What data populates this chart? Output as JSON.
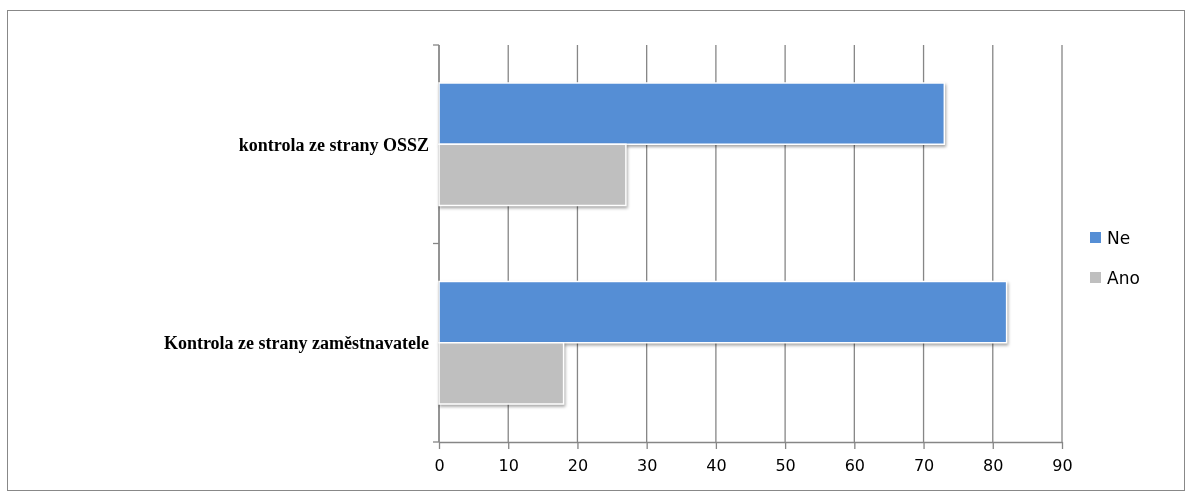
{
  "chart_data": {
    "type": "bar",
    "orientation": "horizontal",
    "categories": [
      "kontrola ze strany OSSZ",
      "Kontrola ze strany zaměstnavatele"
    ],
    "series": [
      {
        "name": "Ne",
        "color": "#558ed5",
        "values": [
          73,
          82
        ]
      },
      {
        "name": "Ano",
        "color": "#bfbfbf",
        "values": [
          27,
          18
        ]
      }
    ],
    "xlim": [
      0,
      90
    ],
    "xticks": [
      0,
      10,
      20,
      30,
      40,
      50,
      60,
      70,
      80,
      90
    ],
    "grid": "x",
    "legend": "right"
  }
}
